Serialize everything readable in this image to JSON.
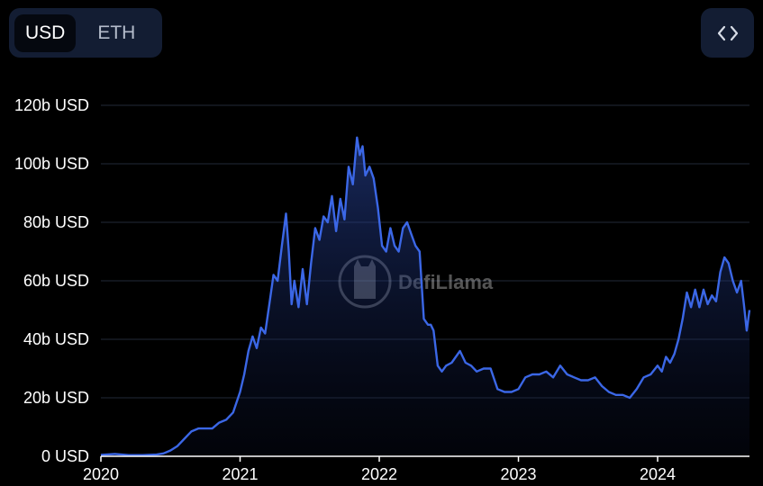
{
  "toggle": {
    "options": [
      "USD",
      "ETH"
    ],
    "selected": "USD"
  },
  "embed_icon": "code-brackets-icon",
  "watermark": "DefiLlama",
  "colors": {
    "background": "#000000",
    "line": "#3b67e6",
    "toggle_bg": "#131d33",
    "grid": "#222a38"
  },
  "chart_data": {
    "type": "area",
    "title": "",
    "xlabel": "",
    "ylabel": "",
    "y_unit": "b USD",
    "ylim": [
      0,
      120
    ],
    "yticks": [
      0,
      20,
      40,
      60,
      80,
      100,
      120
    ],
    "ytick_labels": [
      "0 USD",
      "20b USD",
      "40b USD",
      "60b USD",
      "80b USD",
      "100b USD",
      "120b USD"
    ],
    "xlim": [
      2020.0,
      2024.66
    ],
    "xticks": [
      2020,
      2021,
      2022,
      2023,
      2024
    ],
    "xtick_labels": [
      "2020",
      "2021",
      "2022",
      "2023",
      "2024"
    ],
    "grid": true,
    "legend": "none",
    "series": [
      {
        "x": [
          2020.0,
          2020.1,
          2020.2,
          2020.3,
          2020.4,
          2020.45,
          2020.5,
          2020.55,
          2020.6,
          2020.65,
          2020.7,
          2020.75,
          2020.8,
          2020.85,
          2020.9,
          2020.95,
          2021.0,
          2021.03,
          2021.06,
          2021.09,
          2021.12,
          2021.15,
          2021.18,
          2021.21,
          2021.24,
          2021.27,
          2021.3,
          2021.33,
          2021.35,
          2021.37,
          2021.39,
          2021.42,
          2021.45,
          2021.48,
          2021.51,
          2021.54,
          2021.57,
          2021.6,
          2021.63,
          2021.66,
          2021.69,
          2021.72,
          2021.75,
          2021.78,
          2021.81,
          2021.84,
          2021.86,
          2021.88,
          2021.9,
          2021.93,
          2021.96,
          2021.99,
          2022.02,
          2022.05,
          2022.08,
          2022.11,
          2022.14,
          2022.17,
          2022.2,
          2022.23,
          2022.26,
          2022.29,
          2022.32,
          2022.35,
          2022.37,
          2022.39,
          2022.42,
          2022.45,
          2022.48,
          2022.52,
          2022.55,
          2022.58,
          2022.62,
          2022.66,
          2022.7,
          2022.75,
          2022.8,
          2022.85,
          2022.9,
          2022.95,
          2023.0,
          2023.05,
          2023.1,
          2023.15,
          2023.2,
          2023.25,
          2023.3,
          2023.35,
          2023.4,
          2023.45,
          2023.5,
          2023.55,
          2023.6,
          2023.65,
          2023.7,
          2023.75,
          2023.8,
          2023.85,
          2023.9,
          2023.95,
          2024.0,
          2024.03,
          2024.06,
          2024.09,
          2024.12,
          2024.15,
          2024.18,
          2024.21,
          2024.24,
          2024.27,
          2024.3,
          2024.33,
          2024.36,
          2024.39,
          2024.42,
          2024.45,
          2024.48,
          2024.51,
          2024.54,
          2024.57,
          2024.6,
          2024.62,
          2024.64,
          2024.66
        ],
        "y": [
          0.5,
          0.8,
          0.4,
          0.4,
          0.6,
          1.0,
          2.0,
          3.5,
          6.0,
          8.5,
          9.5,
          9.5,
          9.5,
          11.5,
          12.5,
          15.0,
          22.0,
          28.0,
          36.0,
          41.0,
          37.0,
          44.0,
          42.0,
          52.0,
          62.0,
          60.0,
          72.0,
          83.0,
          70.0,
          52.0,
          60.0,
          51.0,
          64.0,
          52.0,
          66.0,
          78.0,
          74.0,
          82.0,
          80.0,
          89.0,
          77.0,
          88.0,
          81.0,
          99.0,
          93.0,
          109.0,
          103.0,
          106.0,
          96.0,
          99.0,
          95.0,
          85.0,
          72.0,
          70.0,
          78.0,
          72.0,
          70.0,
          78.0,
          80.0,
          76.0,
          72.0,
          70.0,
          47.0,
          45.0,
          45.0,
          43.0,
          31.0,
          29.0,
          31.0,
          32.0,
          34.0,
          36.0,
          32.0,
          31.0,
          29.0,
          30.0,
          30.0,
          23.0,
          22.0,
          22.0,
          23.0,
          27.0,
          28.0,
          28.0,
          29.0,
          27.0,
          31.0,
          28.0,
          27.0,
          26.0,
          26.0,
          27.0,
          24.0,
          22.0,
          21.0,
          21.0,
          20.0,
          23.0,
          27.0,
          28.0,
          31.0,
          29.0,
          34.0,
          32.0,
          35.0,
          40.0,
          47.0,
          56.0,
          51.0,
          57.0,
          51.0,
          57.0,
          52.0,
          55.0,
          53.0,
          63.0,
          68.0,
          66.0,
          60.0,
          56.0,
          60.0,
          52.0,
          43.0,
          50.0
        ]
      }
    ]
  }
}
